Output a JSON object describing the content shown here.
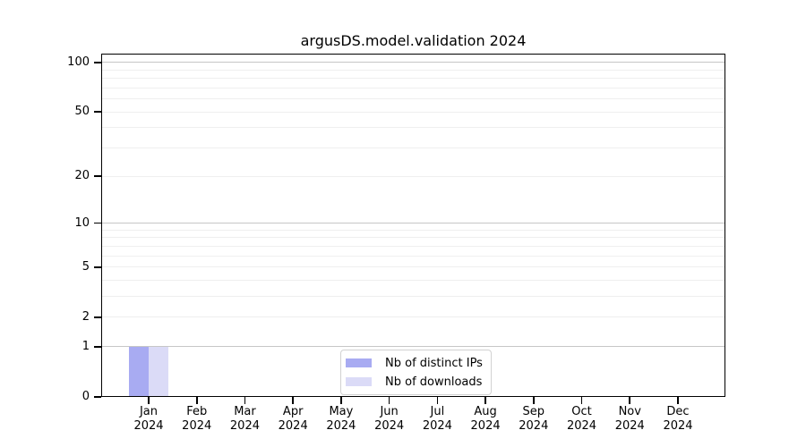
{
  "title": "argusDS.model.validation 2024",
  "chart_data": {
    "type": "bar",
    "title": "argusDS.model.validation 2024",
    "xlabel": "",
    "ylabel": "",
    "categories": [
      "Jan 2024",
      "Feb 2024",
      "Mar 2024",
      "Apr 2024",
      "May 2024",
      "Jun 2024",
      "Jul 2024",
      "Aug 2024",
      "Sep 2024",
      "Oct 2024",
      "Nov 2024",
      "Dec 2024"
    ],
    "series": [
      {
        "name": "Nb of distinct IPs",
        "color": "#a8abf2",
        "values": [
          1,
          0,
          0,
          0,
          0,
          0,
          0,
          0,
          0,
          0,
          0,
          0
        ]
      },
      {
        "name": "Nb of downloads",
        "color": "#dbdbf7",
        "values": [
          1,
          0,
          0,
          0,
          0,
          0,
          0,
          0,
          0,
          0,
          0,
          0
        ]
      }
    ],
    "yscale": "log1p",
    "ylim": [
      0,
      113
    ],
    "y_tick_values": [
      0,
      1,
      2,
      5,
      10,
      20,
      50,
      100
    ],
    "y_major_gridlines": [
      1,
      10,
      100
    ],
    "y_minor_gridlines": [
      2,
      3,
      4,
      5,
      6,
      7,
      8,
      9,
      20,
      30,
      40,
      50,
      60,
      70,
      80,
      90
    ],
    "grid": true,
    "legend": {
      "position": "lower center",
      "entries": [
        "Nb of distinct IPs",
        "Nb of downloads"
      ]
    }
  },
  "colors": {
    "background": "#ffffff",
    "bar_distinct_ips": "#a8abf2",
    "bar_downloads": "#dbdbf7",
    "grid_major": "#c6c6c6",
    "grid_minor": "#efefef",
    "spine": "#000000",
    "text": "#000000",
    "legend_border": "#d2d2d2"
  }
}
